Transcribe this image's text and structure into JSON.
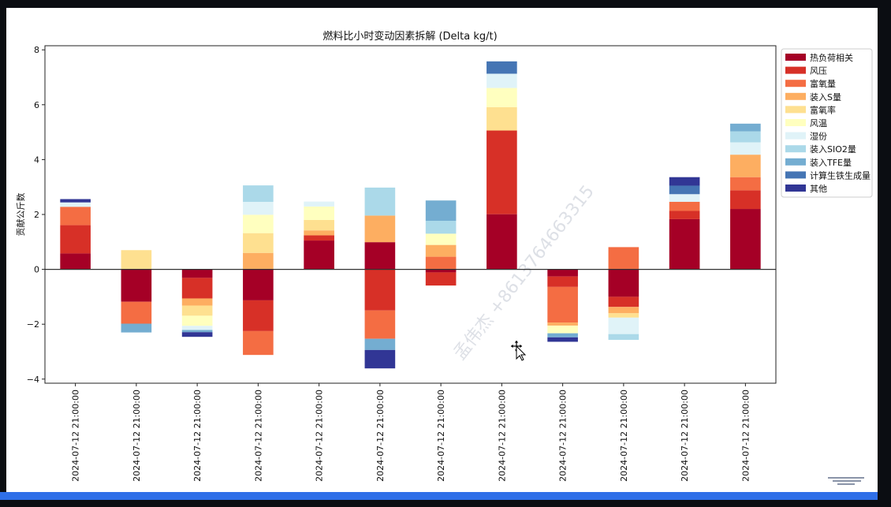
{
  "chart_data": {
    "type": "bar",
    "stacked": true,
    "title": "燃料比小时变动因素拆解 (Delta kg/t)",
    "xlabel": "",
    "ylabel": "贡献公斤数",
    "ylim": [
      -4.15,
      8.15
    ],
    "yticks": [
      -4,
      -2,
      0,
      2,
      4,
      6,
      8
    ],
    "legend_position": "outside-right-top",
    "categories": [
      "2024-07-12 21:00:00",
      "2024-07-12 21:00:00",
      "2024-07-12 21:00:00",
      "2024-07-12 21:00:00",
      "2024-07-12 21:00:00",
      "2024-07-12 21:00:00",
      "2024-07-12 21:00:00",
      "2024-07-12 21:00:00",
      "2024-07-12 21:00:00",
      "2024-07-12 21:00:00",
      "2024-07-12 21:00:00",
      "2024-07-12 21:00:00"
    ],
    "series": [
      {
        "name": "热负荷相关",
        "color": "#a50026",
        "values": [
          0.58,
          -1.18,
          -0.31,
          -1.13,
          1.05,
          0.99,
          -0.11,
          2.01,
          -0.26,
          -1.0,
          1.83,
          2.2
        ]
      },
      {
        "name": "风压",
        "color": "#d73027",
        "values": [
          1.03,
          0,
          -0.75,
          -1.12,
          0.19,
          -1.5,
          -0.48,
          3.05,
          -0.38,
          -0.37,
          0.3,
          0.68
        ]
      },
      {
        "name": "富氧量",
        "color": "#f46d43",
        "values": [
          0.67,
          -0.8,
          0,
          -0.87,
          0,
          -1.03,
          0.46,
          0,
          -1.3,
          0.81,
          0.33,
          0.48
        ]
      },
      {
        "name": "装入S量",
        "color": "#fdae61",
        "values": [
          0,
          0,
          -0.26,
          0.6,
          0.18,
          0.97,
          0.43,
          0,
          -0.11,
          -0.23,
          0,
          0.82
        ]
      },
      {
        "name": "富氧率",
        "color": "#fee090",
        "values": [
          0,
          0.7,
          -0.37,
          0.72,
          0.38,
          0,
          0,
          0.85,
          0,
          -0.16,
          0,
          0
        ]
      },
      {
        "name": "风温",
        "color": "#ffffbf",
        "values": [
          0,
          0,
          -0.37,
          0.67,
          0.49,
          0,
          0.41,
          0.7,
          -0.28,
          0,
          0,
          0
        ]
      },
      {
        "name": "湿份",
        "color": "#e0f3f8",
        "values": [
          0.16,
          0,
          -0.15,
          0.47,
          0.18,
          0,
          0,
          0.52,
          0,
          -0.6,
          0.28,
          0.45
        ]
      },
      {
        "name": "装入SIO2量",
        "color": "#abd9e9",
        "values": [
          0,
          0,
          0,
          0.6,
          0,
          1.02,
          0.47,
          0,
          0,
          -0.21,
          0,
          0.4
        ]
      },
      {
        "name": "装入TFE量",
        "color": "#74add1",
        "values": [
          0,
          -0.32,
          -0.08,
          0,
          0,
          -0.41,
          0.74,
          0,
          -0.15,
          0,
          0,
          0.28
        ]
      },
      {
        "name": "计算生铁生成量",
        "color": "#4575b4",
        "values": [
          0,
          0,
          0,
          0,
          0,
          0,
          0,
          0.45,
          0,
          0,
          0.31,
          0
        ]
      },
      {
        "name": "其他",
        "color": "#313695",
        "values": [
          0.12,
          0,
          -0.17,
          0,
          0,
          -0.67,
          0,
          0,
          -0.16,
          0,
          0.31,
          0
        ]
      }
    ],
    "watermark": "孟伟杰 +8613764663315"
  }
}
